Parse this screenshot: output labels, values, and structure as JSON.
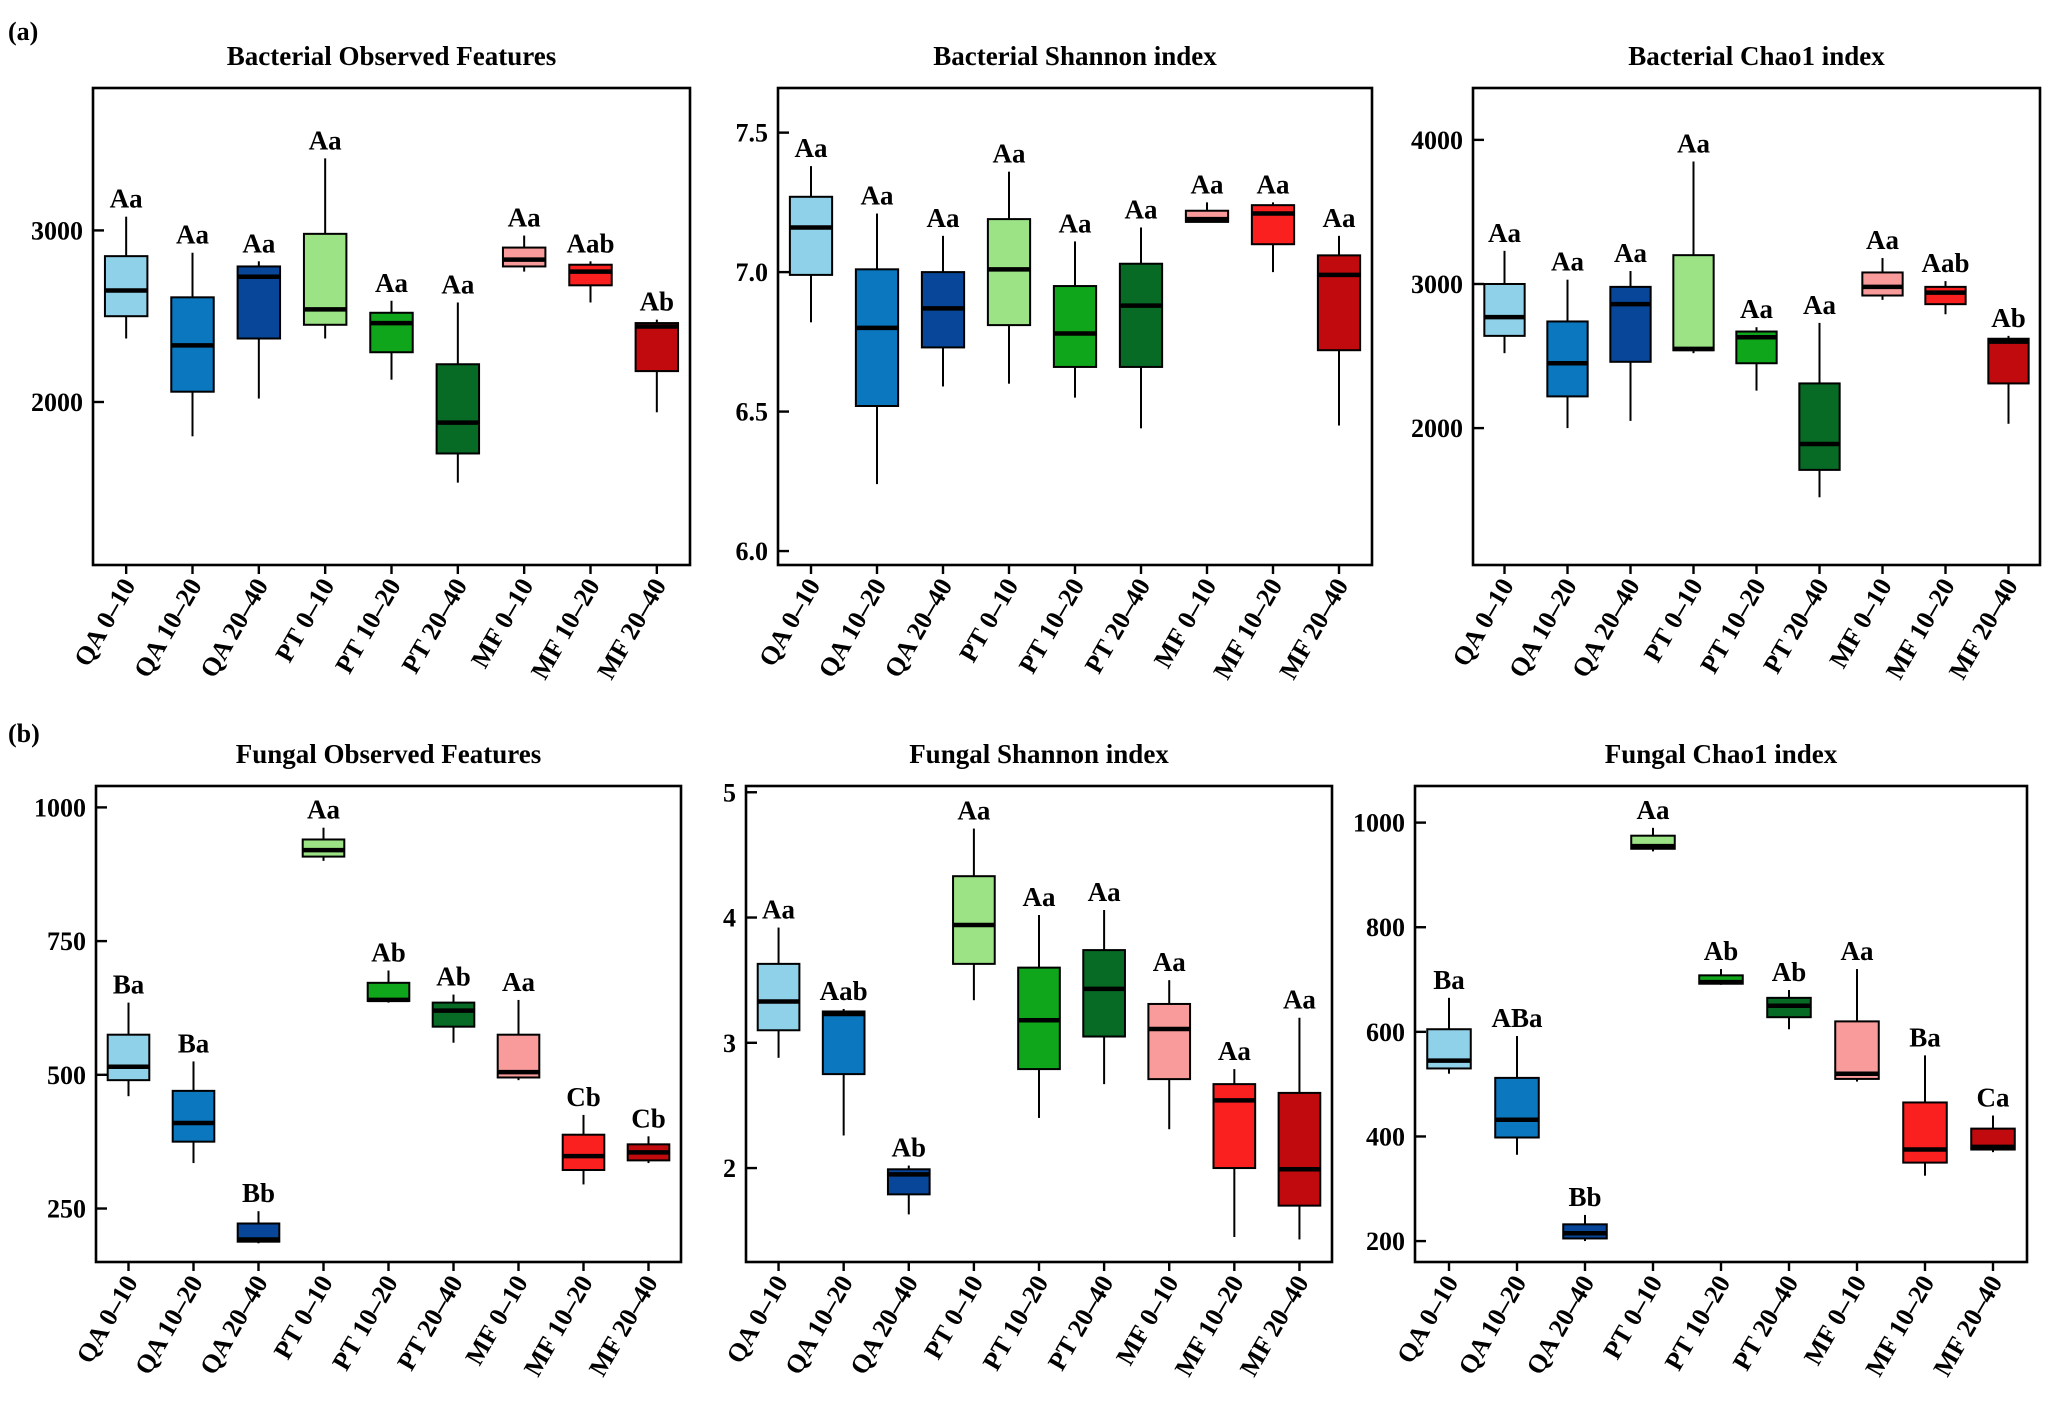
{
  "panel_labels": [
    "(a)",
    "(b)"
  ],
  "colors": [
    "#8fd1e8",
    "#0a77bf",
    "#084699",
    "#9be385",
    "#10a61b",
    "#076b25",
    "#f99b9b",
    "#fb2020",
    "#c10a0e"
  ],
  "categories": [
    "QA 0–10",
    "QA 10–20",
    "QA 20–40",
    "PT 0–10",
    "PT 10–20",
    "PT 20–40",
    "MF 0–10",
    "MF 10–20",
    "MF 20–40"
  ],
  "chart_data": [
    {
      "type": "box",
      "title": "Bacterial Observed Features",
      "ylim": [
        1050,
        3830
      ],
      "yticks": [
        2000,
        3000
      ],
      "ytick_labels": [
        "2000",
        "3000"
      ],
      "boxes": [
        {
          "min": 2370,
          "q1": 2500,
          "median": 2650,
          "q3": 2850,
          "max": 3080,
          "label": "Aa"
        },
        {
          "min": 1800,
          "q1": 2060,
          "median": 2330,
          "q3": 2610,
          "max": 2870,
          "label": "Aa"
        },
        {
          "min": 2020,
          "q1": 2370,
          "median": 2730,
          "q3": 2790,
          "max": 2820,
          "label": "Aa"
        },
        {
          "min": 2370,
          "q1": 2450,
          "median": 2540,
          "q3": 2980,
          "max": 3420,
          "label": "Aa"
        },
        {
          "min": 2130,
          "q1": 2290,
          "median": 2460,
          "q3": 2520,
          "max": 2590,
          "label": "Aa"
        },
        {
          "min": 1530,
          "q1": 1700,
          "median": 1880,
          "q3": 2220,
          "max": 2580,
          "label": "Aa"
        },
        {
          "min": 2760,
          "q1": 2790,
          "median": 2830,
          "q3": 2900,
          "max": 2970,
          "label": "Aa"
        },
        {
          "min": 2580,
          "q1": 2680,
          "median": 2760,
          "q3": 2800,
          "max": 2820,
          "label": "Aab"
        },
        {
          "min": 1940,
          "q1": 2180,
          "median": 2440,
          "q3": 2460,
          "max": 2480,
          "label": "Ab"
        }
      ]
    },
    {
      "type": "box",
      "title": "Bacterial Shannon index",
      "ylim": [
        5.95,
        7.66
      ],
      "yticks": [
        6.0,
        6.5,
        7.0,
        7.5
      ],
      "ytick_labels": [
        "6.0",
        "6.5",
        "7.0",
        "7.5"
      ],
      "boxes": [
        {
          "min": 6.82,
          "q1": 6.99,
          "median": 7.16,
          "q3": 7.27,
          "max": 7.38,
          "label": "Aa"
        },
        {
          "min": 6.24,
          "q1": 6.52,
          "median": 6.8,
          "q3": 7.01,
          "max": 7.21,
          "label": "Aa"
        },
        {
          "min": 6.59,
          "q1": 6.73,
          "median": 6.87,
          "q3": 7.0,
          "max": 7.13,
          "label": "Aa"
        },
        {
          "min": 6.6,
          "q1": 6.81,
          "median": 7.01,
          "q3": 7.19,
          "max": 7.36,
          "label": "Aa"
        },
        {
          "min": 6.55,
          "q1": 6.66,
          "median": 6.78,
          "q3": 6.95,
          "max": 7.11,
          "label": "Aa"
        },
        {
          "min": 6.44,
          "q1": 6.66,
          "median": 6.88,
          "q3": 7.03,
          "max": 7.16,
          "label": "Aa"
        },
        {
          "min": 7.18,
          "q1": 7.18,
          "median": 7.19,
          "q3": 7.22,
          "max": 7.25,
          "label": "Aa"
        },
        {
          "min": 7.0,
          "q1": 7.1,
          "median": 7.21,
          "q3": 7.24,
          "max": 7.25,
          "label": "Aa"
        },
        {
          "min": 6.45,
          "q1": 6.72,
          "median": 6.99,
          "q3": 7.06,
          "max": 7.13,
          "label": "Aa"
        }
      ]
    },
    {
      "type": "box",
      "title": "Bacterial Chao1 index",
      "ylim": [
        1050,
        4360
      ],
      "yticks": [
        2000,
        3000,
        4000
      ],
      "ytick_labels": [
        "2000",
        "3000",
        "4000"
      ],
      "boxes": [
        {
          "min": 2520,
          "q1": 2640,
          "median": 2770,
          "q3": 3000,
          "max": 3230,
          "label": "Aa"
        },
        {
          "min": 2000,
          "q1": 2220,
          "median": 2450,
          "q3": 2740,
          "max": 3030,
          "label": "Aa"
        },
        {
          "min": 2050,
          "q1": 2460,
          "median": 2860,
          "q3": 2980,
          "max": 3090,
          "label": "Aa"
        },
        {
          "min": 2520,
          "q1": 2540,
          "median": 2550,
          "q3": 3200,
          "max": 3850,
          "label": "Aa"
        },
        {
          "min": 2260,
          "q1": 2450,
          "median": 2630,
          "q3": 2670,
          "max": 2700,
          "label": "Aa"
        },
        {
          "min": 1520,
          "q1": 1710,
          "median": 1890,
          "q3": 2310,
          "max": 2730,
          "label": "Aa"
        },
        {
          "min": 2890,
          "q1": 2920,
          "median": 2980,
          "q3": 3080,
          "max": 3180,
          "label": "Aa"
        },
        {
          "min": 2790,
          "q1": 2860,
          "median": 2940,
          "q3": 2980,
          "max": 3020,
          "label": "Aab"
        },
        {
          "min": 2030,
          "q1": 2310,
          "median": 2600,
          "q3": 2620,
          "max": 2640,
          "label": "Ab"
        }
      ]
    },
    {
      "type": "box",
      "title": "Fungal Observed Features",
      "ylim": [
        150,
        1040
      ],
      "yticks": [
        250,
        500,
        750,
        1000
      ],
      "ytick_labels": [
        "250",
        "500",
        "750",
        "1000"
      ],
      "boxes": [
        {
          "min": 460,
          "q1": 490,
          "median": 515,
          "q3": 575,
          "max": 635,
          "label": "Ba"
        },
        {
          "min": 335,
          "q1": 375,
          "median": 410,
          "q3": 470,
          "max": 525,
          "label": "Ba"
        },
        {
          "min": 185,
          "q1": 188,
          "median": 192,
          "q3": 222,
          "max": 245,
          "label": "Bb"
        },
        {
          "min": 900,
          "q1": 908,
          "median": 920,
          "q3": 940,
          "max": 962,
          "label": "Aa"
        },
        {
          "min": 635,
          "q1": 638,
          "median": 640,
          "q3": 672,
          "max": 695,
          "label": "Ab"
        },
        {
          "min": 560,
          "q1": 590,
          "median": 620,
          "q3": 635,
          "max": 650,
          "label": "Ab"
        },
        {
          "min": 490,
          "q1": 495,
          "median": 505,
          "q3": 575,
          "max": 640,
          "label": "Aa"
        },
        {
          "min": 295,
          "q1": 322,
          "median": 348,
          "q3": 388,
          "max": 425,
          "label": "Cb"
        },
        {
          "min": 335,
          "q1": 340,
          "median": 355,
          "q3": 370,
          "max": 385,
          "label": "Cb"
        }
      ]
    },
    {
      "type": "box",
      "title": "Fungal Shannon index",
      "ylim": [
        1.25,
        5.05
      ],
      "yticks": [
        2,
        3,
        4,
        5
      ],
      "ytick_labels": [
        "2",
        "3",
        "4",
        "5"
      ],
      "boxes": [
        {
          "min": 2.88,
          "q1": 3.1,
          "median": 3.33,
          "q3": 3.63,
          "max": 3.92,
          "label": "Aa"
        },
        {
          "min": 2.26,
          "q1": 2.75,
          "median": 3.23,
          "q3": 3.25,
          "max": 3.27,
          "label": "Aab"
        },
        {
          "min": 1.63,
          "q1": 1.79,
          "median": 1.95,
          "q3": 1.99,
          "max": 2.02,
          "label": "Ab"
        },
        {
          "min": 3.34,
          "q1": 3.63,
          "median": 3.94,
          "q3": 4.33,
          "max": 4.71,
          "label": "Aa"
        },
        {
          "min": 2.4,
          "q1": 2.79,
          "median": 3.18,
          "q3": 3.6,
          "max": 4.02,
          "label": "Aa"
        },
        {
          "min": 2.67,
          "q1": 3.05,
          "median": 3.43,
          "q3": 3.74,
          "max": 4.06,
          "label": "Aa"
        },
        {
          "min": 2.31,
          "q1": 2.71,
          "median": 3.11,
          "q3": 3.31,
          "max": 3.5,
          "label": "Aa"
        },
        {
          "min": 1.45,
          "q1": 2.0,
          "median": 2.54,
          "q3": 2.67,
          "max": 2.79,
          "label": "Aa"
        },
        {
          "min": 1.43,
          "q1": 1.7,
          "median": 1.99,
          "q3": 2.6,
          "max": 3.2,
          "label": "Aa"
        }
      ]
    },
    {
      "type": "box",
      "title": "Fungal Chao1 index",
      "ylim": [
        160,
        1070
      ],
      "yticks": [
        200,
        400,
        600,
        800,
        1000
      ],
      "ytick_labels": [
        "200",
        "400",
        "600",
        "800",
        "1000"
      ],
      "boxes": [
        {
          "min": 520,
          "q1": 530,
          "median": 545,
          "q3": 605,
          "max": 665,
          "label": "Ba"
        },
        {
          "min": 365,
          "q1": 398,
          "median": 432,
          "q3": 512,
          "max": 592,
          "label": "ABa"
        },
        {
          "min": 200,
          "q1": 205,
          "median": 215,
          "q3": 232,
          "max": 250,
          "label": "Bb"
        },
        {
          "min": 945,
          "q1": 950,
          "median": 955,
          "q3": 975,
          "max": 990,
          "label": "Aa"
        },
        {
          "min": 690,
          "q1": 692,
          "median": 695,
          "q3": 708,
          "max": 720,
          "label": "Ab"
        },
        {
          "min": 605,
          "q1": 628,
          "median": 650,
          "q3": 665,
          "max": 680,
          "label": "Ab"
        },
        {
          "min": 505,
          "q1": 510,
          "median": 520,
          "q3": 620,
          "max": 720,
          "label": "Aa"
        },
        {
          "min": 325,
          "q1": 350,
          "median": 375,
          "q3": 465,
          "max": 555,
          "label": "Ba"
        },
        {
          "min": 370,
          "q1": 375,
          "median": 380,
          "q3": 415,
          "max": 440,
          "label": "Ca"
        }
      ]
    }
  ]
}
